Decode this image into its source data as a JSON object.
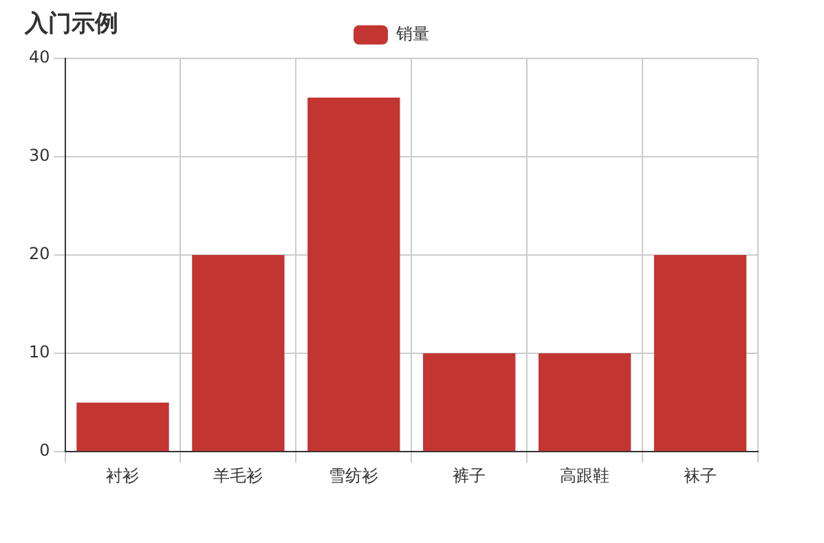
{
  "chart_data": {
    "type": "bar",
    "title": "入门示例",
    "categories": [
      "衬衫",
      "羊毛衫",
      "雪纺衫",
      "裤子",
      "高跟鞋",
      "袜子"
    ],
    "series": [
      {
        "name": "销量",
        "color": "#c23531",
        "values": [
          5,
          20,
          36,
          10,
          10,
          20
        ]
      }
    ],
    "ylim": [
      0,
      40
    ],
    "yticks": [
      0,
      10,
      20,
      30,
      40
    ],
    "grid": true,
    "legend": "top"
  }
}
